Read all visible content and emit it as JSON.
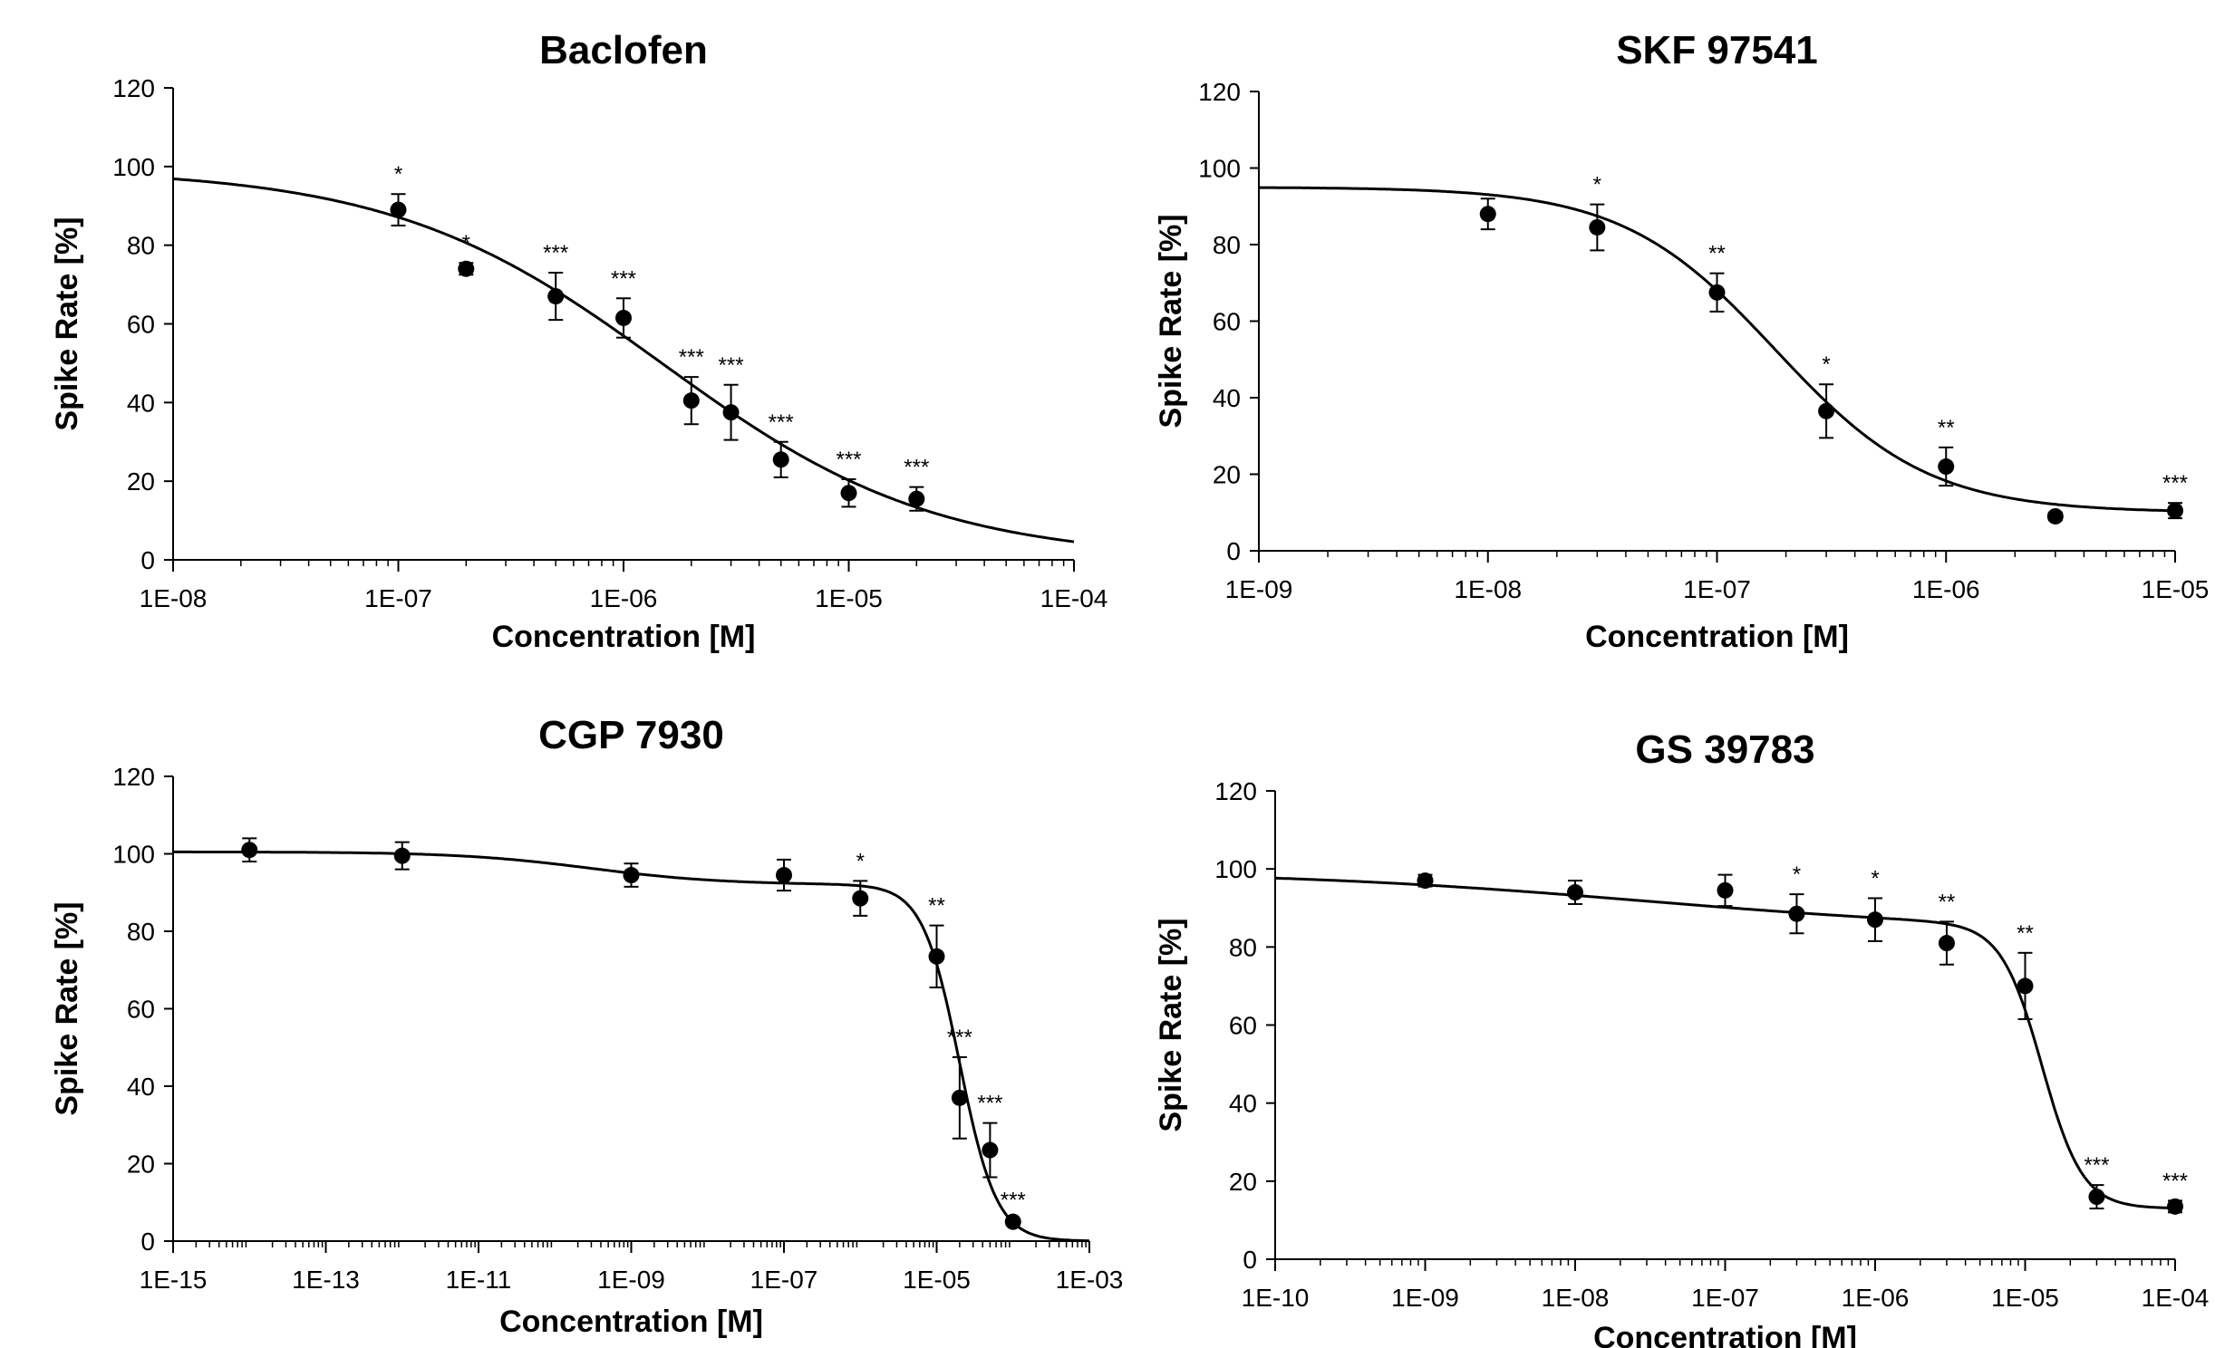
{
  "chart_data": [
    {
      "type": "scatter",
      "title": "Baclofen",
      "xlabel": "Concentration [M]",
      "ylabel": "Spike Rate [%]",
      "x_scale": "log",
      "xlim": [
        1e-08,
        0.0001
      ],
      "ylim": [
        0,
        120
      ],
      "x_ticks": [
        "1E-08",
        "1E-07",
        "1E-06",
        "1E-05",
        "1E-04"
      ],
      "y_ticks": [
        "0",
        "20",
        "40",
        "60",
        "80",
        "100",
        "120"
      ],
      "series": [
        {
          "points": [
            {
              "x": 1e-07,
              "y": 89,
              "err": 4,
              "sig": "*"
            },
            {
              "x": 2e-07,
              "y": 74,
              "err": 1.5,
              "sig": "*"
            },
            {
              "x": 5e-07,
              "y": 67,
              "err": 6,
              "sig": "***"
            },
            {
              "x": 1e-06,
              "y": 61.5,
              "err": 5,
              "sig": "***"
            },
            {
              "x": 2e-06,
              "y": 40.5,
              "err": 6,
              "sig": "***"
            },
            {
              "x": 3e-06,
              "y": 37.5,
              "err": 7,
              "sig": "***"
            },
            {
              "x": 5e-06,
              "y": 25.5,
              "err": 4.5,
              "sig": "***"
            },
            {
              "x": 1e-05,
              "y": 17,
              "err": 3.5,
              "sig": "***"
            },
            {
              "x": 2e-05,
              "y": 15.5,
              "err": 3,
              "sig": "***"
            }
          ],
          "fit": {
            "top": 99.5,
            "bottom": 0,
            "ec50": 1.5e-06,
            "hill": 0.72
          }
        }
      ]
    },
    {
      "type": "scatter",
      "title": "SKF 97541",
      "xlabel": "Concentration [M]",
      "ylabel": "Spike Rate [%]",
      "x_scale": "log",
      "xlim": [
        1e-09,
        1e-05
      ],
      "ylim": [
        0,
        120
      ],
      "x_ticks": [
        "1E-09",
        "1E-08",
        "1E-07",
        "1E-06",
        "1E-05"
      ],
      "y_ticks": [
        "0",
        "20",
        "40",
        "60",
        "80",
        "100",
        "120"
      ],
      "series": [
        {
          "points": [
            {
              "x": 1e-08,
              "y": 88,
              "err": 4,
              "sig": ""
            },
            {
              "x": 3e-08,
              "y": 84.5,
              "err": 6,
              "sig": "*"
            },
            {
              "x": 1e-07,
              "y": 67.5,
              "err": 5,
              "sig": "**"
            },
            {
              "x": 3e-07,
              "y": 36.5,
              "err": 7,
              "sig": "*"
            },
            {
              "x": 1e-06,
              "y": 22,
              "err": 5,
              "sig": "**"
            },
            {
              "x": 3e-06,
              "y": 9,
              "err": 1,
              "sig": ""
            },
            {
              "x": 1e-05,
              "y": 10.5,
              "err": 2,
              "sig": "***"
            }
          ],
          "fit": {
            "top": 95,
            "bottom": 10,
            "ec50": 1.8e-07,
            "hill": 1.3
          }
        }
      ]
    },
    {
      "type": "scatter",
      "title": "CGP 7930",
      "xlabel": "Concentration [M]",
      "ylabel": "Spike Rate [%]",
      "x_scale": "log",
      "xlim": [
        1e-15,
        0.001
      ],
      "ylim": [
        0,
        120
      ],
      "x_ticks": [
        "1E-15",
        "1E-13",
        "1E-11",
        "1E-09",
        "1E-07",
        "1E-05",
        "1E-03"
      ],
      "y_ticks": [
        "0",
        "20",
        "40",
        "60",
        "80",
        "100",
        "120"
      ],
      "series": [
        {
          "points": [
            {
              "x": 1e-14,
              "y": 101,
              "err": 3,
              "sig": ""
            },
            {
              "x": 1e-12,
              "y": 99.5,
              "err": 3.5,
              "sig": ""
            },
            {
              "x": 1e-09,
              "y": 94.5,
              "err": 3,
              "sig": ""
            },
            {
              "x": 1e-07,
              "y": 94.5,
              "err": 4,
              "sig": ""
            },
            {
              "x": 1e-06,
              "y": 88.5,
              "err": 4.5,
              "sig": "*"
            },
            {
              "x": 1e-05,
              "y": 73.5,
              "err": 8,
              "sig": "**"
            },
            {
              "x": 2e-05,
              "y": 37,
              "err": 10.5,
              "sig": "***"
            },
            {
              "x": 5e-05,
              "y": 23.5,
              "err": 7,
              "sig": "***"
            },
            {
              "x": 0.0001,
              "y": 5,
              "err": 0.5,
              "sig": "***"
            }
          ],
          "fit": {
            "biphasic": true,
            "top1": 100.5,
            "bottom1": 92,
            "ec50_1": 3e-10,
            "hill1": 0.5,
            "ec50_2": 2e-05,
            "hill2": 1.8
          }
        }
      ]
    },
    {
      "type": "scatter",
      "title": "GS 39783",
      "xlabel": "Concentration [M]",
      "ylabel": "Spike Rate [%]",
      "x_scale": "log",
      "xlim": [
        1e-10,
        0.0001
      ],
      "ylim": [
        0,
        120
      ],
      "x_ticks": [
        "1E-10",
        "1E-09",
        "1E-08",
        "1E-07",
        "1E-06",
        "1E-05",
        "1E-04"
      ],
      "y_ticks": [
        "0",
        "20",
        "40",
        "60",
        "80",
        "100",
        "120"
      ],
      "series": [
        {
          "points": [
            {
              "x": 1e-09,
              "y": 97,
              "err": 1.5,
              "sig": ""
            },
            {
              "x": 1e-08,
              "y": 94,
              "err": 3,
              "sig": ""
            },
            {
              "x": 1e-07,
              "y": 94.5,
              "err": 4,
              "sig": ""
            },
            {
              "x": 3e-07,
              "y": 88.5,
              "err": 5,
              "sig": "*"
            },
            {
              "x": 1e-06,
              "y": 87,
              "err": 5.5,
              "sig": "*"
            },
            {
              "x": 3e-06,
              "y": 81,
              "err": 5.5,
              "sig": "**"
            },
            {
              "x": 1e-05,
              "y": 70,
              "err": 8.5,
              "sig": "**"
            },
            {
              "x": 3e-05,
              "y": 16,
              "err": 3,
              "sig": "***"
            },
            {
              "x": 0.0001,
              "y": 13.5,
              "err": 1.5,
              "sig": "***"
            }
          ],
          "fit": {
            "biphasic": true,
            "top1": 99.5,
            "bottom1": 84,
            "ec50_1": 3e-08,
            "hill1": 0.35,
            "ec50_2": 1.3e-05,
            "hill2": 3.2,
            "bottom2": 13
          }
        }
      ]
    }
  ]
}
